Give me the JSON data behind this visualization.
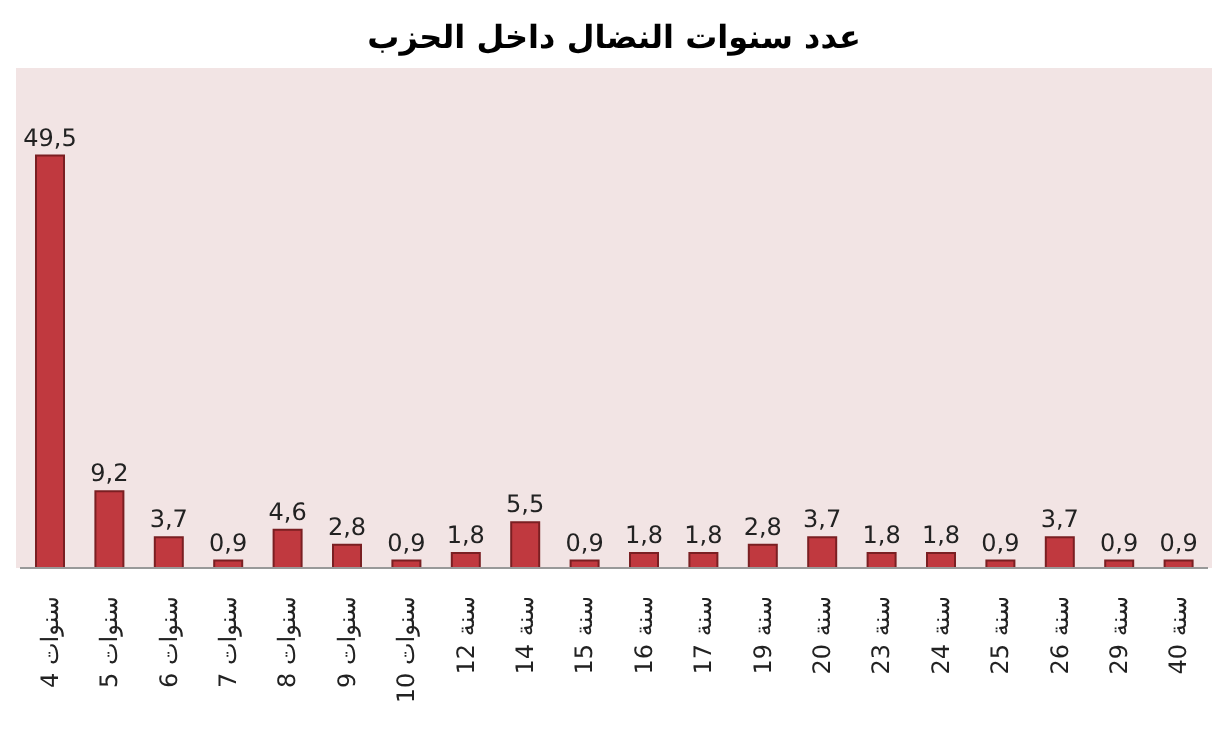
{
  "chart_data": {
    "type": "bar",
    "title": "عدد سنوات النضال داخل الحزب",
    "categories": [
      "4 سنوات",
      "5 سنوات",
      "6 سنوات",
      "7 سنوات",
      "8 سنوات",
      "9 سنوات",
      "10 سنوات",
      "12 سنة",
      "14 سنة",
      "15 سنة",
      "16 سنة",
      "17 سنة",
      "19 سنة",
      "20 سنة",
      "23 سنة",
      "24 سنة",
      "25 سنة",
      "26 سنة",
      "29 سنة",
      "40 سنة"
    ],
    "values": [
      49.5,
      9.2,
      3.7,
      0.9,
      4.6,
      2.8,
      0.9,
      1.8,
      5.5,
      0.9,
      1.8,
      1.8,
      2.8,
      3.7,
      1.8,
      1.8,
      0.9,
      3.7,
      0.9,
      0.9
    ],
    "value_labels": [
      "49,5",
      "9,2",
      "3,7",
      "0,9",
      "4,6",
      "2,8",
      "0,9",
      "1,8",
      "5,5",
      "0,9",
      "1,8",
      "1,8",
      "2,8",
      "3,7",
      "1,8",
      "1,8",
      "0,9",
      "3,7",
      "0,9",
      "0,9"
    ],
    "color": "#c0393f",
    "tick_labels": "x"
  }
}
